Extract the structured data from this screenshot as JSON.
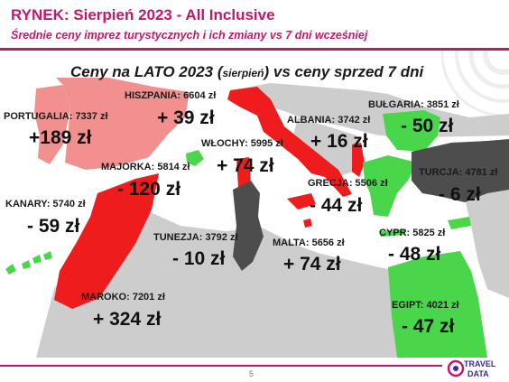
{
  "header": {
    "title": "RYNEK: Sierpień 2023 - All Inclusive",
    "subtitle": "Średnie ceny imprez turystycznych i ich zmiany vs 7 dni wcześniej"
  },
  "map": {
    "heading_part1": "Ceny na LATO 2023 (",
    "heading_small": "sierpień",
    "heading_part2": ") vs ceny sprzed 7 dni",
    "legend_colors": {
      "price_up": "#ee1c1c",
      "price_up_light": "#f29090",
      "price_down": "#4ad64a",
      "price_down_dark": "#4d4d4d",
      "neutral": "#cdcdcd"
    },
    "destinations": [
      {
        "id": "portugalia",
        "label": "PORTUGALIA: 7337 zł",
        "change": "+189 zł"
      },
      {
        "id": "hiszpania",
        "label": "HISZPANIA: 6604 zł",
        "change": "+ 39 zł"
      },
      {
        "id": "wlochy",
        "label": "WŁOCHY: 5995 zł",
        "change": "+ 74 zł"
      },
      {
        "id": "albania",
        "label": "ALBANIA: 3742 zł",
        "change": "+ 16 zł"
      },
      {
        "id": "bulgaria",
        "label": "BUŁGARIA: 3851 zł",
        "change": "- 50 zł"
      },
      {
        "id": "majorka",
        "label": "MAJORKA: 5814 zł",
        "change": "- 120 zł"
      },
      {
        "id": "grecja",
        "label": "GRECJA: 5506 zł",
        "change": "- 44 zł"
      },
      {
        "id": "turcja",
        "label": "TURCJA: 4781 zł",
        "change": "- 6 zł"
      },
      {
        "id": "kanary",
        "label": "KANARY: 5740 zł",
        "change": "- 59 zł"
      },
      {
        "id": "tunezja",
        "label": "TUNEZJA: 3792 zł",
        "change": "- 10 zł"
      },
      {
        "id": "malta",
        "label": "MALTA: 5656 zł",
        "change": "+ 74 zł"
      },
      {
        "id": "cypr",
        "label": "CYPR: 5825 zł",
        "change": "- 48 zł"
      },
      {
        "id": "maroko",
        "label": "MAROKO: 7201 zł",
        "change": "+ 324 zł"
      },
      {
        "id": "egipt",
        "label": "EGIPT: 4021 zł",
        "change": "- 47 zł"
      }
    ]
  },
  "footer": {
    "page_number": "5",
    "logo_line1": "TRAVEL",
    "logo_line2": "DATA"
  }
}
